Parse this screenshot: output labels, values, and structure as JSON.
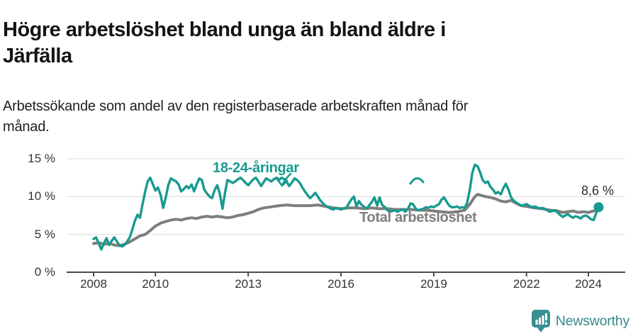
{
  "header": {
    "title": "Högre arbetslöshet bland unga än bland äldre i Järfälla",
    "title_lines": [
      "Högre arbetslöshet bland unga än bland äldre i",
      "Järfälla"
    ],
    "subtitle": "Arbetssökande som andel av den registerbaserade arbetskraften månad för månad.",
    "subtitle_lines": [
      "Arbetssökande som andel av den registerbaserade arbetskraften månad för",
      "månad."
    ]
  },
  "colors": {
    "accent_teal": "#189a90",
    "line_gray": "#7e7e7e",
    "grid": "#dcdcdc",
    "axis": "#4a4a4a",
    "tick_text": "#333333",
    "brand_teal": "#3a8f90"
  },
  "chart_data": {
    "type": "line",
    "title": "Högre arbetslöshet bland unga än bland äldre i Järfälla",
    "subtitle": "Arbetssökande som andel av den registerbaserade arbetskraften månad för månad.",
    "x_unit": "decimal_year",
    "y_unit": "percent",
    "xlim": [
      2008,
      2024.75
    ],
    "ylim": [
      0,
      15
    ],
    "grid": "horizontal",
    "legend": "direct-labels-on-chart",
    "x_ticks": [
      {
        "value": 2008,
        "label": "2008"
      },
      {
        "value": 2010,
        "label": "2010"
      },
      {
        "value": 2013,
        "label": "2013"
      },
      {
        "value": 2016,
        "label": "2016"
      },
      {
        "value": 2019,
        "label": "2019"
      },
      {
        "value": 2022,
        "label": "2022"
      },
      {
        "value": 2024,
        "label": "2024"
      }
    ],
    "y_ticks": [
      {
        "value": 0,
        "label": "0 %"
      },
      {
        "value": 5,
        "label": "5 %"
      },
      {
        "value": 10,
        "label": "10 %"
      },
      {
        "value": 15,
        "label": "15 %"
      }
    ],
    "series": [
      {
        "name": "18-24-åringar",
        "color": "#189a90",
        "points": [
          [
            2008.0,
            4.4
          ],
          [
            2008.08,
            4.6
          ],
          [
            2008.17,
            3.8
          ],
          [
            2008.25,
            3.0
          ],
          [
            2008.33,
            3.8
          ],
          [
            2008.42,
            4.5
          ],
          [
            2008.5,
            3.6
          ],
          [
            2008.58,
            4.1
          ],
          [
            2008.67,
            4.6
          ],
          [
            2008.75,
            4.1
          ],
          [
            2008.83,
            3.6
          ],
          [
            2008.92,
            3.4
          ],
          [
            2009.0,
            3.6
          ],
          [
            2009.08,
            4.0
          ],
          [
            2009.17,
            4.6
          ],
          [
            2009.25,
            5.6
          ],
          [
            2009.33,
            6.7
          ],
          [
            2009.42,
            7.6
          ],
          [
            2009.5,
            7.2
          ],
          [
            2009.58,
            8.9
          ],
          [
            2009.67,
            10.7
          ],
          [
            2009.75,
            12.0
          ],
          [
            2009.83,
            12.5
          ],
          [
            2009.92,
            11.6
          ],
          [
            2010.0,
            10.8
          ],
          [
            2010.08,
            11.2
          ],
          [
            2010.17,
            10.2
          ],
          [
            2010.25,
            8.5
          ],
          [
            2010.33,
            9.8
          ],
          [
            2010.42,
            11.6
          ],
          [
            2010.5,
            12.4
          ],
          [
            2010.58,
            12.2
          ],
          [
            2010.67,
            12.0
          ],
          [
            2010.75,
            11.6
          ],
          [
            2010.83,
            10.7
          ],
          [
            2010.92,
            11.0
          ],
          [
            2011.0,
            11.4
          ],
          [
            2011.08,
            11.1
          ],
          [
            2011.17,
            11.6
          ],
          [
            2011.25,
            10.7
          ],
          [
            2011.33,
            11.6
          ],
          [
            2011.42,
            12.4
          ],
          [
            2011.5,
            12.2
          ],
          [
            2011.58,
            10.9
          ],
          [
            2011.67,
            10.4
          ],
          [
            2011.75,
            10.0
          ],
          [
            2011.83,
            9.8
          ],
          [
            2011.92,
            10.9
          ],
          [
            2012.0,
            11.5
          ],
          [
            2012.08,
            10.4
          ],
          [
            2012.17,
            8.4
          ],
          [
            2012.25,
            10.5
          ],
          [
            2012.33,
            12.2
          ],
          [
            2012.42,
            12.0
          ],
          [
            2012.5,
            11.8
          ],
          [
            2012.58,
            12.0
          ],
          [
            2012.67,
            12.3
          ],
          [
            2012.75,
            12.5
          ],
          [
            2012.83,
            12.2
          ],
          [
            2012.92,
            11.8
          ],
          [
            2013.0,
            11.5
          ],
          [
            2013.08,
            11.9
          ],
          [
            2013.17,
            12.3
          ],
          [
            2013.25,
            12.5
          ],
          [
            2013.33,
            12.0
          ],
          [
            2013.42,
            11.4
          ],
          [
            2013.5,
            11.9
          ],
          [
            2013.58,
            12.4
          ],
          [
            2013.67,
            12.2
          ],
          [
            2013.75,
            12.0
          ],
          [
            2013.83,
            12.3
          ],
          [
            2013.92,
            12.5
          ],
          [
            2014.0,
            12.2
          ],
          [
            2014.08,
            12.5
          ],
          [
            2014.17,
            12.3
          ],
          [
            2014.25,
            11.9
          ],
          [
            2014.33,
            11.4
          ],
          [
            2014.42,
            11.9
          ],
          [
            2014.5,
            12.4
          ],
          [
            2014.58,
            12.2
          ],
          [
            2014.67,
            11.8
          ],
          [
            2014.75,
            11.2
          ],
          [
            2014.83,
            10.7
          ],
          [
            2014.92,
            10.2
          ],
          [
            2015.0,
            9.8
          ],
          [
            2015.08,
            10.1
          ],
          [
            2015.17,
            10.5
          ],
          [
            2015.25,
            10.0
          ],
          [
            2015.33,
            9.5
          ],
          [
            2015.42,
            9.1
          ],
          [
            2015.5,
            8.8
          ],
          [
            2015.58,
            8.6
          ],
          [
            2015.67,
            8.4
          ],
          [
            2015.75,
            8.3
          ],
          [
            2015.83,
            8.5
          ],
          [
            2015.92,
            8.4
          ],
          [
            2016.0,
            8.3
          ],
          [
            2016.17,
            8.5
          ],
          [
            2016.33,
            9.6
          ],
          [
            2016.42,
            10.0
          ],
          [
            2016.5,
            8.7
          ],
          [
            2016.58,
            9.4
          ],
          [
            2016.67,
            8.9
          ],
          [
            2016.83,
            8.4
          ],
          [
            2017.0,
            9.3
          ],
          [
            2017.08,
            9.9
          ],
          [
            2017.17,
            8.8
          ],
          [
            2017.25,
            9.9
          ],
          [
            2017.33,
            8.9
          ],
          [
            2017.42,
            8.6
          ],
          [
            2017.5,
            8.2
          ],
          [
            2017.58,
            8.0
          ],
          [
            2017.67,
            8.1
          ],
          [
            2017.75,
            8.2
          ],
          [
            2017.83,
            8.0
          ],
          [
            2017.92,
            8.2
          ],
          [
            2018.0,
            8.3
          ],
          [
            2018.08,
            8.0
          ],
          [
            2018.17,
            8.4
          ],
          [
            2018.25,
            9.1
          ],
          [
            2018.33,
            9.0
          ],
          [
            2018.42,
            8.4
          ],
          [
            2018.5,
            8.2
          ],
          [
            2018.58,
            8.3
          ],
          [
            2018.67,
            8.4
          ],
          [
            2018.75,
            8.6
          ],
          [
            2018.83,
            8.5
          ],
          [
            2018.92,
            8.7
          ],
          [
            2019.0,
            8.6
          ],
          [
            2019.08,
            8.8
          ],
          [
            2019.17,
            9.0
          ],
          [
            2019.25,
            9.6
          ],
          [
            2019.33,
            9.9
          ],
          [
            2019.42,
            9.3
          ],
          [
            2019.5,
            8.8
          ],
          [
            2019.58,
            8.6
          ],
          [
            2019.67,
            8.6
          ],
          [
            2019.75,
            8.7
          ],
          [
            2019.83,
            8.5
          ],
          [
            2019.92,
            8.6
          ],
          [
            2020.0,
            8.5
          ],
          [
            2020.08,
            9.2
          ],
          [
            2020.17,
            11.0
          ],
          [
            2020.25,
            13.2
          ],
          [
            2020.33,
            14.2
          ],
          [
            2020.42,
            14.0
          ],
          [
            2020.5,
            13.2
          ],
          [
            2020.58,
            12.2
          ],
          [
            2020.67,
            11.8
          ],
          [
            2020.75,
            12.0
          ],
          [
            2020.83,
            11.3
          ],
          [
            2020.92,
            10.9
          ],
          [
            2021.0,
            10.4
          ],
          [
            2021.08,
            10.6
          ],
          [
            2021.17,
            10.3
          ],
          [
            2021.25,
            11.1
          ],
          [
            2021.33,
            11.7
          ],
          [
            2021.42,
            10.9
          ],
          [
            2021.5,
            9.9
          ],
          [
            2021.58,
            9.5
          ],
          [
            2021.67,
            9.2
          ],
          [
            2021.75,
            9.0
          ],
          [
            2021.83,
            8.8
          ],
          [
            2021.92,
            8.9
          ],
          [
            2022.0,
            9.0
          ],
          [
            2022.08,
            8.8
          ],
          [
            2022.17,
            8.6
          ],
          [
            2022.25,
            8.7
          ],
          [
            2022.33,
            8.6
          ],
          [
            2022.42,
            8.4
          ],
          [
            2022.5,
            8.5
          ],
          [
            2022.58,
            8.4
          ],
          [
            2022.67,
            8.2
          ],
          [
            2022.75,
            8.0
          ],
          [
            2022.83,
            8.1
          ],
          [
            2022.92,
            8.2
          ],
          [
            2023.0,
            7.9
          ],
          [
            2023.08,
            7.6
          ],
          [
            2023.17,
            7.3
          ],
          [
            2023.25,
            7.5
          ],
          [
            2023.33,
            7.7
          ],
          [
            2023.42,
            7.4
          ],
          [
            2023.5,
            7.2
          ],
          [
            2023.58,
            7.4
          ],
          [
            2023.67,
            7.3
          ],
          [
            2023.75,
            7.1
          ],
          [
            2023.83,
            7.4
          ],
          [
            2023.92,
            7.5
          ],
          [
            2024.0,
            7.3
          ],
          [
            2024.08,
            7.0
          ],
          [
            2024.17,
            6.9
          ],
          [
            2024.25,
            7.8
          ],
          [
            2024.33,
            8.6
          ]
        ]
      },
      {
        "name": "Total arbetslöshet",
        "color": "#7e7e7e",
        "points": [
          [
            2008.0,
            3.8
          ],
          [
            2008.17,
            3.9
          ],
          [
            2008.33,
            3.7
          ],
          [
            2008.5,
            3.8
          ],
          [
            2008.67,
            3.6
          ],
          [
            2008.83,
            3.5
          ],
          [
            2009.0,
            3.7
          ],
          [
            2009.17,
            4.0
          ],
          [
            2009.33,
            4.4
          ],
          [
            2009.5,
            4.8
          ],
          [
            2009.67,
            5.0
          ],
          [
            2009.83,
            5.5
          ],
          [
            2010.0,
            6.1
          ],
          [
            2010.17,
            6.5
          ],
          [
            2010.33,
            6.7
          ],
          [
            2010.5,
            6.9
          ],
          [
            2010.67,
            7.0
          ],
          [
            2010.83,
            6.9
          ],
          [
            2011.0,
            7.1
          ],
          [
            2011.17,
            7.2
          ],
          [
            2011.33,
            7.1
          ],
          [
            2011.5,
            7.3
          ],
          [
            2011.67,
            7.4
          ],
          [
            2011.83,
            7.3
          ],
          [
            2012.0,
            7.4
          ],
          [
            2012.17,
            7.3
          ],
          [
            2012.33,
            7.2
          ],
          [
            2012.5,
            7.3
          ],
          [
            2012.67,
            7.5
          ],
          [
            2012.83,
            7.6
          ],
          [
            2013.0,
            7.8
          ],
          [
            2013.17,
            8.0
          ],
          [
            2013.33,
            8.3
          ],
          [
            2013.5,
            8.5
          ],
          [
            2013.67,
            8.6
          ],
          [
            2013.83,
            8.7
          ],
          [
            2014.0,
            8.8
          ],
          [
            2014.25,
            8.9
          ],
          [
            2014.5,
            8.8
          ],
          [
            2014.75,
            8.8
          ],
          [
            2015.0,
            8.8
          ],
          [
            2015.25,
            8.9
          ],
          [
            2015.5,
            8.7
          ],
          [
            2015.75,
            8.5
          ],
          [
            2016.0,
            8.4
          ],
          [
            2016.25,
            8.5
          ],
          [
            2016.5,
            8.5
          ],
          [
            2016.75,
            8.4
          ],
          [
            2017.0,
            8.5
          ],
          [
            2017.25,
            8.4
          ],
          [
            2017.5,
            8.4
          ],
          [
            2017.75,
            8.3
          ],
          [
            2018.0,
            8.3
          ],
          [
            2018.25,
            8.3
          ],
          [
            2018.5,
            8.2
          ],
          [
            2018.75,
            8.2
          ],
          [
            2019.0,
            8.1
          ],
          [
            2019.25,
            8.0
          ],
          [
            2019.5,
            7.9
          ],
          [
            2019.75,
            8.0
          ],
          [
            2020.0,
            8.2
          ],
          [
            2020.17,
            9.0
          ],
          [
            2020.33,
            10.0
          ],
          [
            2020.42,
            10.3
          ],
          [
            2020.5,
            10.2
          ],
          [
            2020.67,
            10.0
          ],
          [
            2020.83,
            9.9
          ],
          [
            2021.0,
            9.7
          ],
          [
            2021.17,
            9.4
          ],
          [
            2021.33,
            9.3
          ],
          [
            2021.5,
            9.5
          ],
          [
            2021.67,
            9.1
          ],
          [
            2021.83,
            8.8
          ],
          [
            2022.0,
            8.7
          ],
          [
            2022.25,
            8.5
          ],
          [
            2022.5,
            8.4
          ],
          [
            2022.75,
            8.2
          ],
          [
            2023.0,
            8.1
          ],
          [
            2023.17,
            7.9
          ],
          [
            2023.33,
            8.0
          ],
          [
            2023.5,
            8.1
          ],
          [
            2023.67,
            7.9
          ],
          [
            2023.83,
            8.0
          ],
          [
            2024.0,
            7.9
          ],
          [
            2024.17,
            8.1
          ],
          [
            2024.33,
            8.3
          ]
        ]
      }
    ],
    "end_annotation": {
      "series": "18-24-åringar",
      "text": "8,6 %",
      "value": 8.6,
      "x": 2024.33
    }
  },
  "footer": {
    "brand": "Newsworthy",
    "logo_icon": "newsworthy-speech-bubble-bar-chart-icon"
  }
}
